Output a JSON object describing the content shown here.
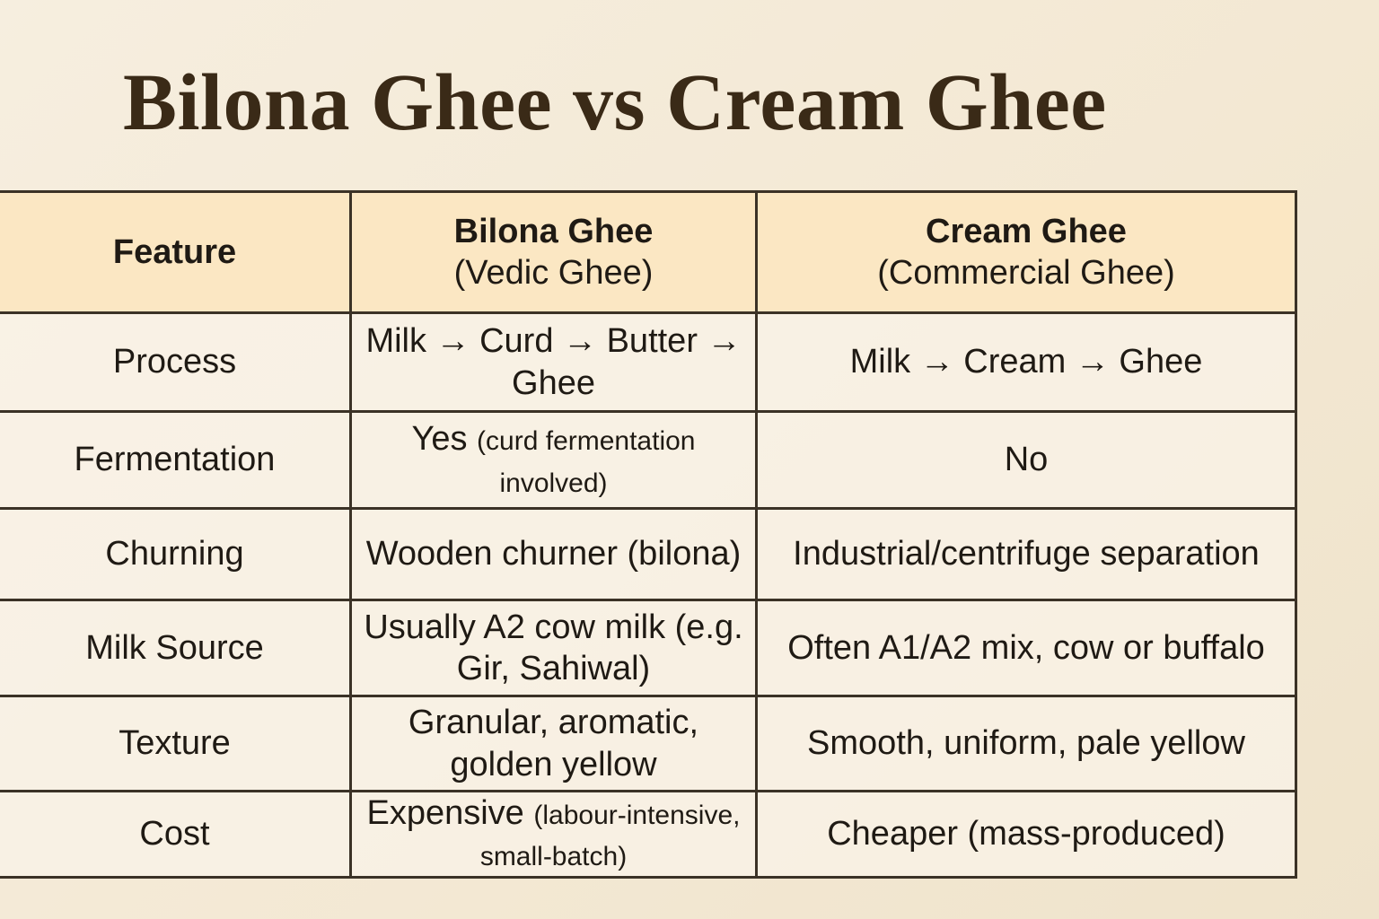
{
  "header": {
    "title": "Bilona Ghee vs Cream Ghee"
  },
  "table": {
    "columns": [
      {
        "title": "Feature"
      },
      {
        "title": "Bilona Ghee",
        "subtitle": "(Vedic Ghee)"
      },
      {
        "title": "Cream Ghee",
        "subtitle": "(Commercial Ghee)"
      }
    ],
    "rows": [
      {
        "feature": "Process",
        "bilona": {
          "text": "Milk → Curd → Butter → Ghee"
        },
        "cream": {
          "text": "Milk → Cream → Ghee"
        }
      },
      {
        "feature": "Fermentation",
        "bilona": {
          "text": "Yes",
          "note": "(curd fermentation involved)"
        },
        "cream": {
          "text": "No"
        }
      },
      {
        "feature": "Churning",
        "bilona": {
          "text": "Wooden churner (bilona)"
        },
        "cream": {
          "text": "Industrial/centrifuge separation"
        }
      },
      {
        "feature": "Milk Source",
        "bilona": {
          "text": "Usually A2 cow milk (e.g. Gir, Sahiwal)"
        },
        "cream": {
          "text": "Often A1/A2 mix, cow or buffalo"
        }
      },
      {
        "feature": "Texture",
        "bilona": {
          "text": "Granular, aromatic, golden yellow"
        },
        "cream": {
          "text": "Smooth, uniform, pale yellow"
        }
      },
      {
        "feature": "Cost",
        "bilona": {
          "text": "Expensive",
          "note": "(labour-intensive, small-batch)"
        },
        "cream": {
          "text": "Cheaper (mass-produced)"
        }
      }
    ]
  }
}
